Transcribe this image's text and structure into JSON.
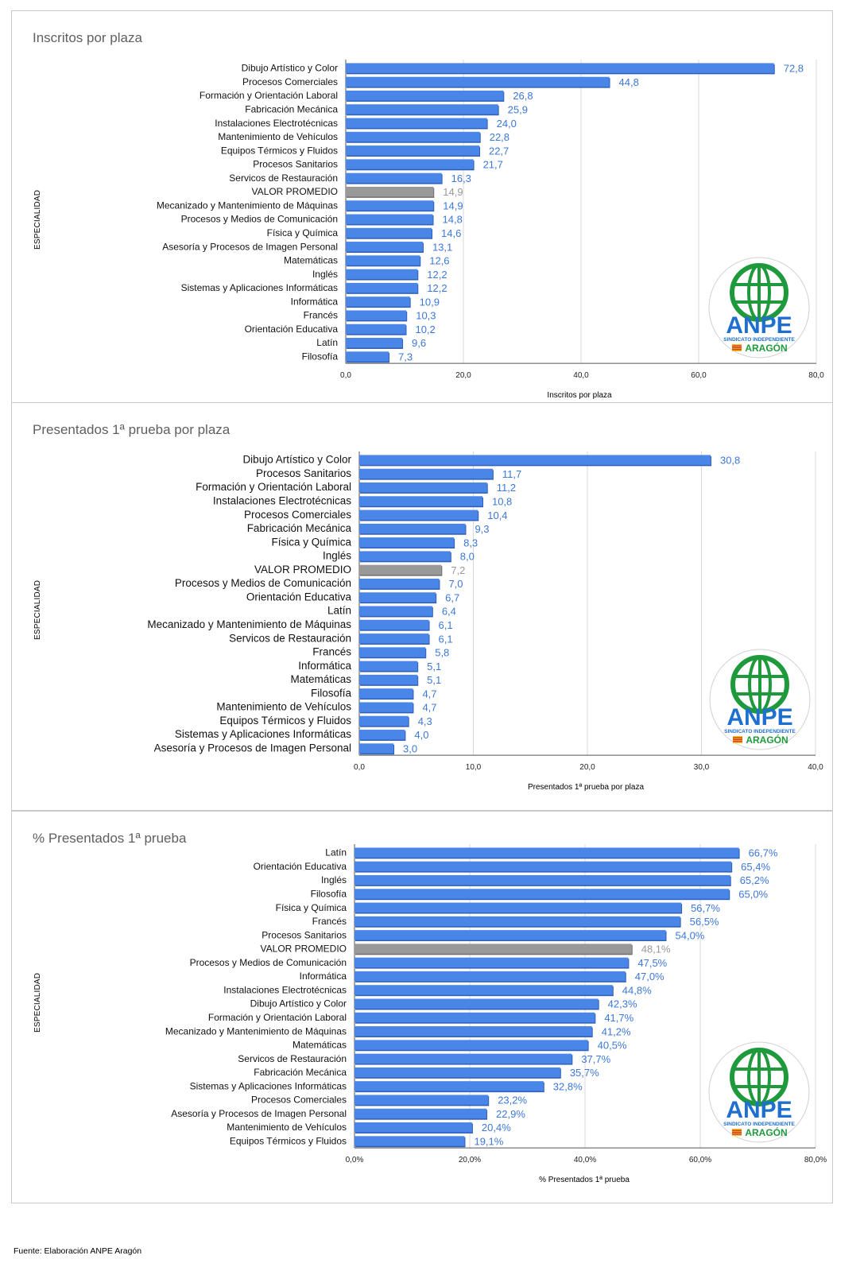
{
  "charts": [
    {
      "id": "c1",
      "chart_data": {
        "type": "bar",
        "title": "Inscritos por plaza",
        "xlabel": "Inscritos por plaza",
        "ylabel": "ESPECIALIDAD",
        "xlim": [
          0,
          80
        ],
        "ticks": [
          "0,0",
          "20,0",
          "40,0",
          "60,0",
          "80,0"
        ],
        "categories": [
          "Dibujo Artístico y Color",
          "Procesos Comerciales",
          "Formación y Orientación Laboral",
          "Fabricación Mecánica",
          "Instalaciones Electrotécnicas",
          "Mantenimiento de Vehículos",
          "Equipos Térmicos y Fluidos",
          "Procesos Sanitarios",
          "Servicos de Restauración",
          "VALOR PROMEDIO",
          "Mecanizado y Mantenimiento de Máquinas",
          "Procesos y Medios de Comunicación",
          "Física y Química",
          "Asesoría y Procesos de Imagen Personal",
          "Matemáticas",
          "Inglés",
          "Sistemas y Aplicaciones Informáticas",
          "Informática",
          "Francés",
          "Orientación Educativa",
          "Latín",
          "Filosofía"
        ],
        "values": [
          72.8,
          44.8,
          26.8,
          25.9,
          24.0,
          22.8,
          22.7,
          21.7,
          16.3,
          14.9,
          14.9,
          14.8,
          14.6,
          13.1,
          12.6,
          12.2,
          12.2,
          10.9,
          10.3,
          10.2,
          9.6,
          7.3
        ],
        "labels": [
          "72,8",
          "44,8",
          "26,8",
          "25,9",
          "24,0",
          "22,8",
          "22,7",
          "21,7",
          "16,3",
          "14,9",
          "14,9",
          "14,8",
          "14,6",
          "13,1",
          "12,6",
          "12,2",
          "12,2",
          "10,9",
          "10,3",
          "10,2",
          "9,6",
          "7,3"
        ],
        "highlight_index": 9,
        "grid": true
      }
    },
    {
      "id": "c2",
      "chart_data": {
        "type": "bar",
        "title": "Presentados 1ª prueba por plaza",
        "xlabel": "Presentados 1ª prueba por plaza",
        "ylabel": "ESPECIALIDAD",
        "xlim": [
          0,
          40
        ],
        "ticks": [
          "0,0",
          "10,0",
          "20,0",
          "30,0",
          "40,0"
        ],
        "categories": [
          "Dibujo Artístico y Color",
          "Procesos Sanitarios",
          "Formación y Orientación Laboral",
          "Instalaciones Electrotécnicas",
          "Procesos Comerciales",
          "Fabricación Mecánica",
          "Física y Química",
          "Inglés",
          "VALOR PROMEDIO",
          "Procesos y Medios de Comunicación",
          "Orientación Educativa",
          "Latín",
          "Mecanizado y Mantenimiento de Máquinas",
          "Servicos de Restauración",
          "Francés",
          "Informática",
          "Matemáticas",
          "Filosofía",
          "Mantenimiento de Vehículos",
          "Equipos Térmicos y Fluidos",
          "Sistemas y Aplicaciones Informáticas",
          "Asesoría y Procesos de Imagen Personal"
        ],
        "values": [
          30.8,
          11.7,
          11.2,
          10.8,
          10.4,
          9.3,
          8.3,
          8.0,
          7.2,
          7.0,
          6.7,
          6.4,
          6.1,
          6.1,
          5.8,
          5.1,
          5.1,
          4.7,
          4.7,
          4.3,
          4.0,
          3.0
        ],
        "labels": [
          "30,8",
          "11,7",
          "11,2",
          "10,8",
          "10,4",
          "9,3",
          "8,3",
          "8,0",
          "7,2",
          "7,0",
          "6,7",
          "6,4",
          "6,1",
          "6,1",
          "5,8",
          "5,1",
          "5,1",
          "4,7",
          "4,7",
          "4,3",
          "4,0",
          "3,0"
        ],
        "highlight_index": 8,
        "grid": true
      }
    },
    {
      "id": "c3",
      "chart_data": {
        "type": "bar",
        "title": "% Presentados 1ª prueba",
        "xlabel": "% Presentados 1ª prueba",
        "ylabel": "ESPECIALIDAD",
        "xlim": [
          0,
          80
        ],
        "ticks": [
          "0,0%",
          "20,0%",
          "40,0%",
          "60,0%",
          "80,0%"
        ],
        "categories": [
          "Latín",
          "Orientación Educativa",
          "Inglés",
          "Filosofía",
          "Física y Química",
          "Francés",
          "Procesos Sanitarios",
          "VALOR PROMEDIO",
          "Procesos y Medios de Comunicación",
          "Informática",
          "Instalaciones Electrotécnicas",
          "Dibujo Artístico y Color",
          "Formación y Orientación Laboral",
          "Mecanizado y Mantenimiento de Máquinas",
          "Matemáticas",
          "Servicos de Restauración",
          "Fabricación Mecánica",
          "Sistemas y Aplicaciones Informáticas",
          "Procesos Comerciales",
          "Asesoría y Procesos de Imagen Personal",
          "Mantenimiento de Vehículos",
          "Equipos Térmicos y Fluidos"
        ],
        "values": [
          66.7,
          65.4,
          65.2,
          65.0,
          56.7,
          56.5,
          54.0,
          48.1,
          47.5,
          47.0,
          44.8,
          42.3,
          41.7,
          41.2,
          40.5,
          37.7,
          35.7,
          32.8,
          23.2,
          22.9,
          20.4,
          19.1
        ],
        "labels": [
          "66,7%",
          "65,4%",
          "65,2%",
          "65,0%",
          "56,7%",
          "56,5%",
          "54,0%",
          "48,1%",
          "47,5%",
          "47,0%",
          "44,8%",
          "42,3%",
          "41,7%",
          "41,2%",
          "40,5%",
          "37,7%",
          "35,7%",
          "32,8%",
          "23,2%",
          "22,9%",
          "20,4%",
          "19,1%"
        ],
        "highlight_index": 7,
        "grid": true
      }
    }
  ],
  "logo": {
    "name": "ANPE",
    "subtitle": "SINDICATO INDEPENDIENTE",
    "region": "ARAGÓN"
  },
  "source": "Fuente: Elaboración ANPE Aragón",
  "colors": {
    "bar": "#4a86e8",
    "bar_edge": "#2f5fb8",
    "avg": "#999999",
    "value_text": "#3c78d8",
    "avg_text": "#999999",
    "grid": "#d9d9d9",
    "logo_green": "#1e9a3c",
    "logo_blue": "#1f6fd1"
  }
}
